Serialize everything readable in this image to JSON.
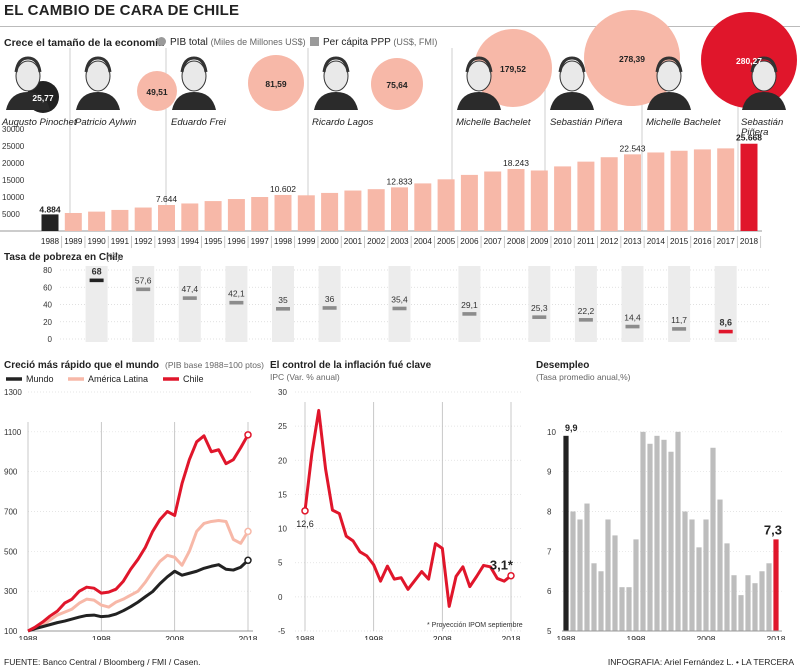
{
  "title": "EL CAMBIO DE CARA DE CHILE",
  "economy": {
    "subtitle": "Crece el tamaño de la economía",
    "legend_pib": "PIB total",
    "legend_pib_units": "(Miles de Millones US$)",
    "legend_pc": "Per cápita PPP",
    "legend_pc_units": "(US$, FMI)"
  },
  "presidents": [
    {
      "name": "Augusto Pinochet",
      "pib_label": "25,77"
    },
    {
      "name": "Patricio Aylwin",
      "pib_label": "49,51"
    },
    {
      "name": "Eduardo Frei",
      "pib_label": "81,59"
    },
    {
      "name": "Ricardo Lagos",
      "pib_label": "75,64"
    },
    {
      "name": "Michelle Bachelet",
      "pib_label": "179,52"
    },
    {
      "name": "Sebastián Piñera",
      "pib_label": "278,39"
    },
    {
      "name": "Michelle Bachelet",
      "pib_label": ""
    },
    {
      "name": "Sebastián Piñera",
      "pib_label": "280,27"
    }
  ],
  "poverty": {
    "subtitle": "Tasa de pobreza en Chile",
    "units": "(%)"
  },
  "growth": {
    "subtitle": "Creció más rápido que el mundo",
    "units": "(PIB base 1988=100 ptos)",
    "legend": [
      "Mundo",
      "América Latina",
      "Chile"
    ]
  },
  "inflation": {
    "subtitle": "El control de la inflación fué clave",
    "units": "IPC (Var. % anual)",
    "note": "* Proyección IPOM septiembre"
  },
  "unemployment": {
    "subtitle": "Desempleo",
    "units": "(Tasa promedio anual,%)"
  },
  "credits": {
    "source": "FUENTE: Banco Central / Bloomberg / FMI / Casen.",
    "graphics": "INFOGRAFIA: Ariel Fernández L. • LA TERCERA"
  },
  "colors": {
    "accent": "#e0162b",
    "light": "#f7b8a8",
    "dark": "#222222",
    "grey": "#bdbdbd"
  },
  "chart_data": [
    {
      "type": "bar",
      "title": "Crece el tamaño de la economía",
      "series_name": "Per cápita PPP",
      "categories": [
        "1988",
        "1989",
        "1990",
        "1991",
        "1992",
        "1993",
        "1994",
        "1995",
        "1996",
        "1997",
        "1998",
        "1999",
        "2000",
        "2001",
        "2002",
        "2003",
        "2004",
        "2005",
        "2006",
        "2007",
        "2008",
        "2009",
        "2010",
        "2011",
        "2012",
        "2013",
        "2014",
        "2015",
        "2016",
        "2017",
        "2018"
      ],
      "values": [
        4884,
        5300,
        5700,
        6200,
        6900,
        7644,
        8100,
        8800,
        9400,
        10000,
        10602,
        10500,
        11200,
        11900,
        12300,
        12833,
        14000,
        15200,
        16500,
        17500,
        18243,
        17800,
        19000,
        20400,
        21700,
        22543,
        23100,
        23600,
        24000,
        24300,
        25668
      ],
      "labels": {
        "0": "4.884",
        "5": "7.644",
        "10": "10.602",
        "15": "12.833",
        "20": "18.243",
        "25": "22.543",
        "30": "25.668"
      },
      "ylim": [
        0,
        30000
      ],
      "yticks": [
        5000,
        10000,
        15000,
        20000,
        25000,
        30000
      ]
    },
    {
      "type": "scatter",
      "title": "Tasa de pobreza en Chile",
      "x": [
        "1990",
        "1992",
        "1994",
        "1996",
        "1998",
        "2000",
        "2003",
        "2006",
        "2009",
        "2011",
        "2013",
        "2015",
        "2017"
      ],
      "values": [
        68,
        57.6,
        47.4,
        42.1,
        35,
        36,
        35.4,
        29.1,
        25.3,
        22.2,
        14.4,
        11.7,
        8.6
      ],
      "labels": [
        "68",
        "57,6",
        "47,4",
        "42,1",
        "35",
        "36",
        "35,4",
        "29,1",
        "25,3",
        "22,2",
        "14,4",
        "11,7",
        "8,6"
      ],
      "ylim": [
        0,
        80
      ],
      "yticks": [
        0,
        20,
        40,
        60,
        80
      ]
    },
    {
      "type": "line",
      "title": "Creció más rápido que el mundo",
      "x": [
        1988,
        1989,
        1990,
        1991,
        1992,
        1993,
        1994,
        1995,
        1996,
        1997,
        1998,
        1999,
        2000,
        2001,
        2002,
        2003,
        2004,
        2005,
        2006,
        2007,
        2008,
        2009,
        2010,
        2011,
        2012,
        2013,
        2014,
        2015,
        2016,
        2017,
        2018
      ],
      "series": [
        {
          "name": "Mundo",
          "values": [
            100,
            112,
            122,
            132,
            142,
            150,
            160,
            170,
            178,
            180,
            172,
            175,
            185,
            202,
            222,
            245,
            272,
            298,
            338,
            372,
            400,
            380,
            390,
            400,
            415,
            425,
            433,
            410,
            406,
            420,
            455
          ]
        },
        {
          "name": "América Latina",
          "values": [
            100,
            118,
            130,
            155,
            180,
            195,
            210,
            240,
            260,
            255,
            230,
            220,
            245,
            260,
            280,
            300,
            345,
            400,
            450,
            480,
            470,
            430,
            500,
            600,
            640,
            650,
            655,
            650,
            560,
            540,
            600
          ]
        },
        {
          "name": "Chile",
          "values": [
            100,
            120,
            145,
            175,
            200,
            240,
            260,
            300,
            320,
            315,
            290,
            295,
            310,
            350,
            410,
            460,
            520,
            600,
            660,
            700,
            680,
            840,
            960,
            1050,
            1080,
            1000,
            1010,
            940,
            960,
            1020,
            1085
          ]
        }
      ],
      "ylim": [
        100,
        1300
      ],
      "yticks": [
        100,
        300,
        500,
        700,
        900,
        1100,
        1300
      ],
      "xticks": [
        1988,
        1998,
        2008,
        2018
      ]
    },
    {
      "type": "line",
      "title": "El control de la inflación fué clave",
      "x": [
        1988,
        1989,
        1990,
        1991,
        1992,
        1993,
        1994,
        1995,
        1996,
        1997,
        1998,
        1999,
        2000,
        2001,
        2002,
        2003,
        2004,
        2005,
        2006,
        2007,
        2008,
        2009,
        2010,
        2011,
        2012,
        2013,
        2014,
        2015,
        2016,
        2017,
        2018
      ],
      "values": [
        12.6,
        21.0,
        27.3,
        18.7,
        12.7,
        12.2,
        8.9,
        8.2,
        6.6,
        6.0,
        4.7,
        2.3,
        4.5,
        2.6,
        2.8,
        1.1,
        2.4,
        3.7,
        2.6,
        7.8,
        7.1,
        -1.4,
        3.0,
        4.4,
        1.5,
        3.0,
        4.6,
        4.4,
        2.7,
        2.3,
        3.1
      ],
      "start_label": "12,6",
      "end_label": "3,1*",
      "ylim": [
        -5,
        30
      ],
      "yticks": [
        -5,
        0,
        5,
        10,
        15,
        20,
        25,
        30
      ],
      "xticks": [
        1988,
        1998,
        2008,
        2018
      ]
    },
    {
      "type": "bar",
      "title": "Desempleo",
      "categories": [
        "1988",
        "1989",
        "1990",
        "1991",
        "1992",
        "1993",
        "1994",
        "1995",
        "1996",
        "1997",
        "1998",
        "1999",
        "2000",
        "2001",
        "2002",
        "2003",
        "2004",
        "2005",
        "2006",
        "2007",
        "2008",
        "2009",
        "2010",
        "2011",
        "2012",
        "2013",
        "2014",
        "2015",
        "2016",
        "2017",
        "2018"
      ],
      "values": [
        9.9,
        8.0,
        7.8,
        8.2,
        6.7,
        6.5,
        7.8,
        7.4,
        6.1,
        6.1,
        7.3,
        10.0,
        9.7,
        9.9,
        9.8,
        9.5,
        10.0,
        8.0,
        7.8,
        7.1,
        7.8,
        9.6,
        8.3,
        7.2,
        6.4,
        5.9,
        6.4,
        6.2,
        6.5,
        6.7,
        7.3
      ],
      "labels": {
        "0": "9,9",
        "30": "7,3"
      },
      "ylim": [
        5,
        11
      ],
      "yticks": [
        5,
        6,
        7,
        8,
        9,
        10
      ],
      "xticks": [
        1988,
        1998,
        2008,
        2018
      ]
    }
  ]
}
